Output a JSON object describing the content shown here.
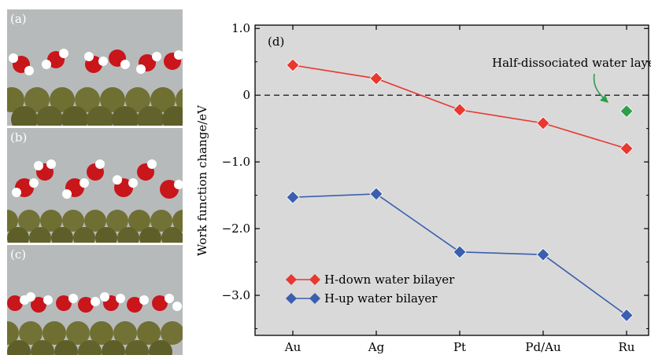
{
  "panels": [
    {
      "label": "(a)",
      "style": "flat"
    },
    {
      "label": "(b)",
      "style": "raised"
    },
    {
      "label": "(c)",
      "style": "dense"
    }
  ],
  "colors": {
    "background": "#d9d9d9",
    "h_down": "#e8382f",
    "h_up": "#3b5fae",
    "half": "#2e9e4a",
    "arrow": "#2e9e4a",
    "substrate": "#7a7a3a",
    "oxygen": "#c8161b",
    "hydrogen": "#ffffff"
  },
  "chart_data": {
    "type": "line",
    "panel_label": "(d)",
    "categories": [
      "Au",
      "Ag",
      "Pt",
      "Pd/Au",
      "Ru"
    ],
    "ylabel": "Work function change/eV",
    "ylim": [
      -3.6,
      1.05
    ],
    "yticks": [
      1.0,
      0,
      -1.0,
      -2.0,
      -3.0
    ],
    "ytick_labels": [
      "1.0",
      "0",
      "−1.0",
      "−2.0",
      "−3.0"
    ],
    "reference_line": 0,
    "series": [
      {
        "name": "H-down water bilayer",
        "values": [
          0.45,
          0.25,
          -0.22,
          -0.42,
          -0.8
        ]
      },
      {
        "name": "H-up water bilayer",
        "values": [
          -1.53,
          -1.48,
          -2.35,
          -2.39,
          -3.3
        ]
      }
    ],
    "annotation": {
      "text": "Half-dissociated water layer",
      "category": "Ru",
      "value": -0.24
    },
    "legend_position": "lower-left",
    "grid": false
  }
}
